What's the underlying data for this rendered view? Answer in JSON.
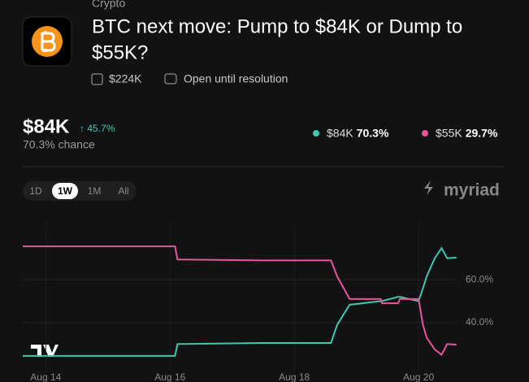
{
  "header": {
    "category": "Crypto",
    "title_lines": [
      "BTC next move: Pump to $84K or Dump to",
      "$55K?"
    ],
    "volume": "$224K",
    "status": "Open until resolution"
  },
  "price": {
    "value": "$84K",
    "change": "↑ 45.7%",
    "chance": "70.3% chance"
  },
  "legend_values": [
    "70.3%",
    "29.7%"
  ],
  "time_ranges": [
    "1D",
    "1W",
    "1M",
    "All"
  ],
  "brand": "myriad",
  "chart_data": {
    "type": "line",
    "x": [
      -0.37,
      2.08,
      2.12,
      3.48,
      4.59,
      4.69,
      4.89,
      5.39,
      5.41,
      5.67,
      5.7,
      6.0,
      6.07,
      6.13,
      6.26,
      6.37,
      6.46,
      6.61
    ],
    "series": [
      {
        "name": "$84K",
        "color": "#3ec8ae",
        "values": [
          24.5,
          24.5,
          30,
          30.5,
          30.5,
          39,
          48.3,
          50,
          50,
          52,
          52,
          50,
          56,
          61.5,
          70,
          74.7,
          70,
          70.3
        ]
      },
      {
        "name": "$55K",
        "color": "#e8559a",
        "values": [
          75.5,
          75.5,
          69.4,
          69,
          69,
          61.5,
          51,
          51,
          49,
          49,
          51,
          51,
          39,
          33,
          27.5,
          25,
          30,
          29.7
        ]
      }
    ],
    "xlim": [
      -0.37,
      7.45
    ],
    "xticks": [
      {
        "value": 0,
        "label": "Aug 14"
      },
      {
        "value": 2,
        "label": "Aug 16"
      },
      {
        "value": 4,
        "label": "Aug 18"
      },
      {
        "value": 6,
        "label": "Aug 20"
      }
    ],
    "ylim": [
      18,
      82
    ],
    "yticks": [
      {
        "value": 60,
        "label": "60.0%"
      },
      {
        "value": 40,
        "label": "40.0%"
      }
    ],
    "grid": true
  }
}
